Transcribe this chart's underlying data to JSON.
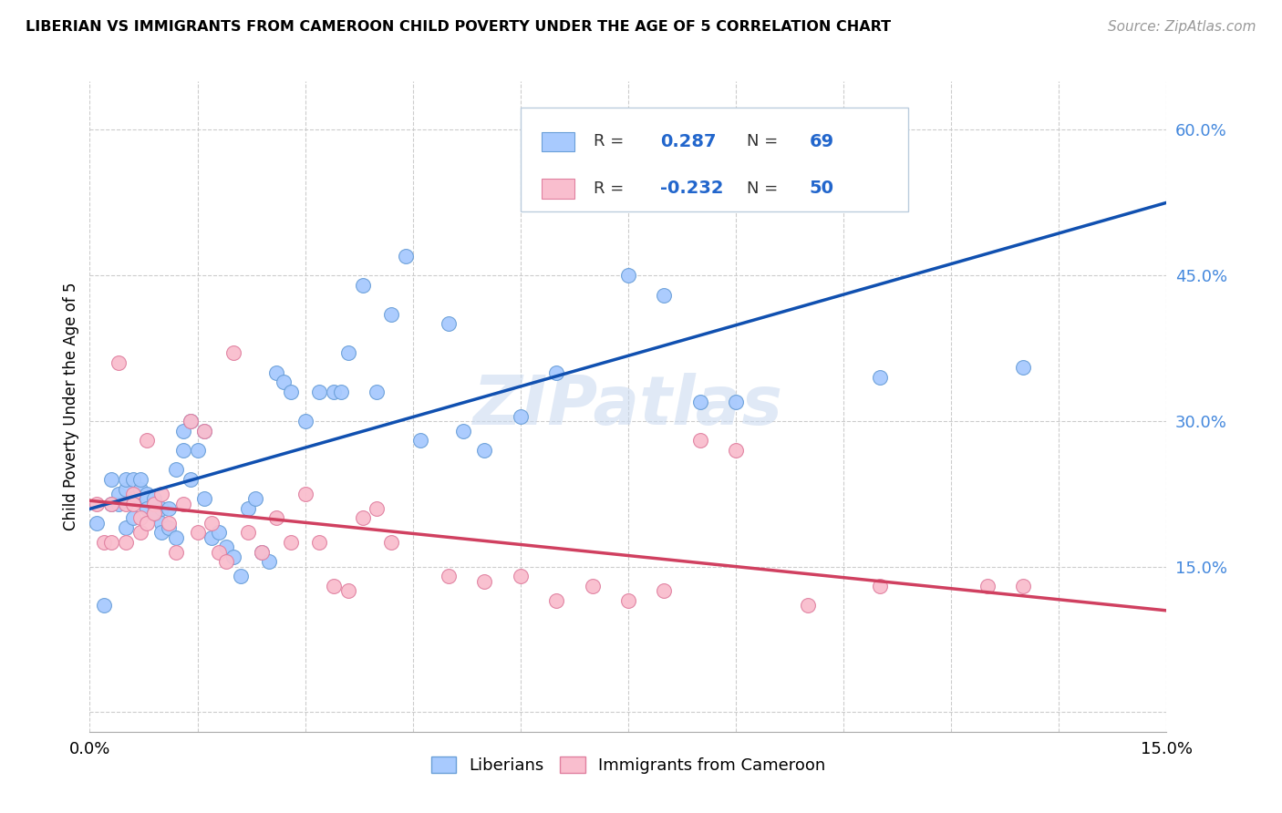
{
  "title": "LIBERIAN VS IMMIGRANTS FROM CAMEROON CHILD POVERTY UNDER THE AGE OF 5 CORRELATION CHART",
  "source": "Source: ZipAtlas.com",
  "ylabel": "Child Poverty Under the Age of 5",
  "xlim": [
    0.0,
    0.15
  ],
  "ylim": [
    -0.02,
    0.65
  ],
  "yticks": [
    0.0,
    0.15,
    0.3,
    0.45,
    0.6
  ],
  "ytick_labels": [
    "",
    "15.0%",
    "30.0%",
    "45.0%",
    "60.0%"
  ],
  "xticks": [
    0.0,
    0.015,
    0.03,
    0.045,
    0.06,
    0.075,
    0.09,
    0.105,
    0.12,
    0.135,
    0.15
  ],
  "xtick_labels": [
    "0.0%",
    "",
    "",
    "",
    "",
    "",
    "",
    "",
    "",
    "",
    "15.0%"
  ],
  "blue_color": "#A8CAFE",
  "blue_edge_color": "#6A9FD8",
  "pink_color": "#F9BECE",
  "pink_edge_color": "#E080A0",
  "blue_line_color": "#1050B0",
  "pink_line_color": "#D04060",
  "legend_blue_R": "0.287",
  "legend_blue_N": "69",
  "legend_pink_R": "-0.232",
  "legend_pink_N": "50",
  "watermark": "ZIPatlas",
  "blue_scatter_x": [
    0.001,
    0.002,
    0.003,
    0.003,
    0.004,
    0.004,
    0.005,
    0.005,
    0.005,
    0.006,
    0.006,
    0.006,
    0.007,
    0.007,
    0.007,
    0.008,
    0.008,
    0.008,
    0.009,
    0.009,
    0.009,
    0.01,
    0.01,
    0.01,
    0.011,
    0.011,
    0.012,
    0.012,
    0.013,
    0.013,
    0.014,
    0.014,
    0.015,
    0.016,
    0.016,
    0.017,
    0.018,
    0.019,
    0.02,
    0.021,
    0.022,
    0.023,
    0.024,
    0.025,
    0.026,
    0.027,
    0.028,
    0.03,
    0.032,
    0.034,
    0.035,
    0.036,
    0.038,
    0.04,
    0.042,
    0.044,
    0.046,
    0.05,
    0.052,
    0.055,
    0.06,
    0.065,
    0.07,
    0.075,
    0.08,
    0.085,
    0.09,
    0.11,
    0.13
  ],
  "blue_scatter_y": [
    0.195,
    0.11,
    0.215,
    0.24,
    0.215,
    0.225,
    0.23,
    0.24,
    0.19,
    0.24,
    0.22,
    0.2,
    0.23,
    0.22,
    0.24,
    0.225,
    0.22,
    0.21,
    0.205,
    0.215,
    0.22,
    0.195,
    0.185,
    0.21,
    0.21,
    0.19,
    0.18,
    0.25,
    0.27,
    0.29,
    0.24,
    0.3,
    0.27,
    0.22,
    0.29,
    0.18,
    0.185,
    0.17,
    0.16,
    0.14,
    0.21,
    0.22,
    0.165,
    0.155,
    0.35,
    0.34,
    0.33,
    0.3,
    0.33,
    0.33,
    0.33,
    0.37,
    0.44,
    0.33,
    0.41,
    0.47,
    0.28,
    0.4,
    0.29,
    0.27,
    0.305,
    0.35,
    0.55,
    0.45,
    0.43,
    0.32,
    0.32,
    0.345,
    0.355
  ],
  "pink_scatter_x": [
    0.001,
    0.002,
    0.003,
    0.003,
    0.004,
    0.005,
    0.005,
    0.006,
    0.006,
    0.007,
    0.007,
    0.008,
    0.008,
    0.009,
    0.009,
    0.01,
    0.011,
    0.012,
    0.013,
    0.014,
    0.015,
    0.016,
    0.017,
    0.018,
    0.019,
    0.02,
    0.022,
    0.024,
    0.026,
    0.028,
    0.03,
    0.032,
    0.034,
    0.036,
    0.038,
    0.04,
    0.042,
    0.05,
    0.055,
    0.06,
    0.065,
    0.07,
    0.075,
    0.08,
    0.085,
    0.09,
    0.1,
    0.11,
    0.125,
    0.13
  ],
  "pink_scatter_y": [
    0.215,
    0.175,
    0.175,
    0.215,
    0.36,
    0.215,
    0.175,
    0.225,
    0.215,
    0.2,
    0.185,
    0.28,
    0.195,
    0.215,
    0.205,
    0.225,
    0.195,
    0.165,
    0.215,
    0.3,
    0.185,
    0.29,
    0.195,
    0.165,
    0.155,
    0.37,
    0.185,
    0.165,
    0.2,
    0.175,
    0.225,
    0.175,
    0.13,
    0.125,
    0.2,
    0.21,
    0.175,
    0.14,
    0.135,
    0.14,
    0.115,
    0.13,
    0.115,
    0.125,
    0.28,
    0.27,
    0.11,
    0.13,
    0.13,
    0.13
  ]
}
